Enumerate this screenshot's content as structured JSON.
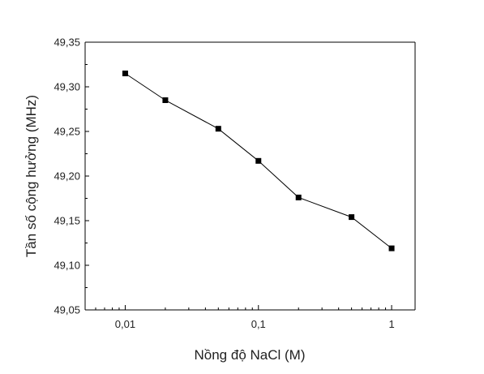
{
  "chart_data": {
    "type": "line",
    "xlabel": "Nồng độ NaCl (M)",
    "ylabel": "Tần số cộng hưởng (MHz)",
    "x_scale": "log",
    "xlim": [
      0.005,
      1.5
    ],
    "ylim": [
      49.05,
      49.35
    ],
    "x_ticks": [
      0.01,
      0.1,
      1
    ],
    "x_tick_labels": [
      "0,01",
      "0,1",
      "1"
    ],
    "y_ticks": [
      49.05,
      49.1,
      49.15,
      49.2,
      49.25,
      49.3,
      49.35
    ],
    "y_tick_labels": [
      "49,05",
      "49,10",
      "49,15",
      "49,20",
      "49,25",
      "49,30",
      "49,35"
    ],
    "grid": false,
    "series": [
      {
        "x": [
          0.01,
          0.02,
          0.05,
          0.1,
          0.2,
          0.5,
          1
        ],
        "y": [
          49.315,
          49.285,
          49.253,
          49.217,
          49.176,
          49.154,
          49.119
        ],
        "color": "#000000",
        "marker": "square"
      }
    ]
  }
}
